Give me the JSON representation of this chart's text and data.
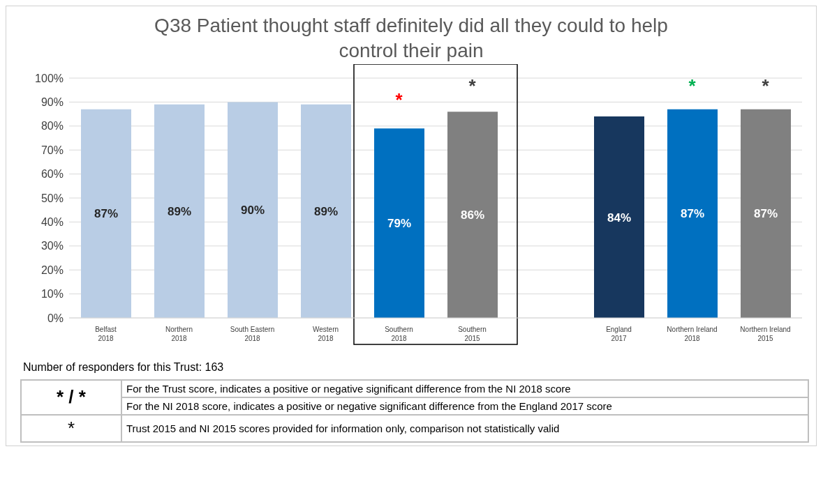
{
  "chart_data": {
    "type": "bar",
    "title": "Q38 Patient thought staff definitely did all they could to help control their pain",
    "categories": [
      "Belfast 2018",
      "Northern 2018",
      "South Eastern 2018",
      "Western 2018",
      "Southern 2018",
      "Southern 2015",
      null,
      "England 2017",
      "Northern Ireland 2018",
      "Northern Ireland 2015"
    ],
    "values": [
      87,
      89,
      90,
      89,
      79,
      86,
      null,
      84,
      87,
      87
    ],
    "colors": [
      "#b9cde5",
      "#b9cde5",
      "#b9cde5",
      "#b9cde5",
      "#0070c0",
      "#808080",
      "#ffffff",
      "#17375e",
      "#0070c0",
      "#808080"
    ],
    "value_labels": [
      "87%",
      "89%",
      "90%",
      "89%",
      "79%",
      "86%",
      null,
      "84%",
      "87%",
      "87%"
    ],
    "ylim": [
      0,
      100
    ],
    "yticks": [
      {
        "value": 0,
        "label": "0%"
      },
      {
        "value": 10,
        "label": "10%"
      },
      {
        "value": 20,
        "label": "20%"
      },
      {
        "value": 30,
        "label": "30%"
      },
      {
        "value": 40,
        "label": "40%"
      },
      {
        "value": 50,
        "label": "50%"
      },
      {
        "value": 60,
        "label": "60%"
      },
      {
        "value": 70,
        "label": "70%"
      },
      {
        "value": 80,
        "label": "80%"
      },
      {
        "value": 90,
        "label": "90%"
      },
      {
        "value": 100,
        "label": "100%"
      }
    ],
    "grid": "y",
    "legend": false,
    "annotations": [
      "*",
      "*",
      "*",
      "*",
      "Number of responders for this Trust: 163",
      "* / *",
      "For the Trust score, indicates a positive or negative significant difference from the NI 2018 score",
      "For the NI 2018 score, indicates a positive or negative significant difference from the England 2017 score",
      "*",
      "Trust 2015 and  NI 2015 scores provided for information only, comparison not statistically valid"
    ]
  }
}
